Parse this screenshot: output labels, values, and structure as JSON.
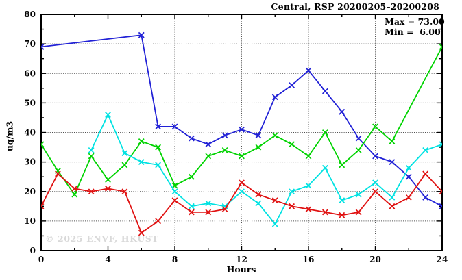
{
  "chart_data": {
    "type": "line",
    "title": "Central, RSP 20200205–20200208",
    "xlabel": "Hours",
    "ylabel": "ug/m3",
    "xlim": [
      0,
      24
    ],
    "ylim": [
      0,
      80
    ],
    "x_major_ticks": [
      0,
      4,
      8,
      12,
      16,
      20,
      24
    ],
    "x_minor_ticks": [
      2,
      6,
      10,
      14,
      18,
      22
    ],
    "y_major_ticks": [
      0,
      10,
      20,
      30,
      40,
      50,
      60,
      70,
      80
    ],
    "y_minor_ticks": [
      5,
      15,
      25,
      35,
      45,
      55,
      65,
      75
    ],
    "grid_x": [
      4,
      8,
      12,
      16,
      20
    ],
    "grid_y": [
      10,
      20,
      30,
      40,
      50,
      60,
      70
    ],
    "grid_on": true,
    "legend_position": "none",
    "annotations": {
      "max_label": "Max = 73.00",
      "min_label": "Min =  6.00"
    },
    "watermark": "© 2025 ENVF, HKUST",
    "x": [
      0,
      1,
      2,
      3,
      4,
      5,
      6,
      7,
      8,
      9,
      10,
      11,
      12,
      13,
      14,
      15,
      16,
      17,
      18,
      19,
      20,
      21,
      22,
      23,
      24
    ],
    "series": [
      {
        "name": "series-blue",
        "color": "#2121d6",
        "values": [
          69,
          null,
          null,
          null,
          null,
          null,
          73,
          42,
          42,
          38,
          36,
          39,
          41,
          39,
          52,
          56,
          61,
          54,
          47,
          38,
          32,
          30,
          25,
          18,
          15
        ]
      },
      {
        "name": "series-green",
        "color": "#00d300",
        "values": [
          36,
          27,
          19,
          32,
          24,
          29,
          37,
          35,
          22,
          25,
          32,
          34,
          32,
          35,
          39,
          36,
          32,
          40,
          29,
          34,
          42,
          37,
          null,
          null,
          69
        ]
      },
      {
        "name": "series-cyan",
        "color": "#00e2e2",
        "values": [
          null,
          null,
          null,
          34,
          46,
          33,
          30,
          29,
          20,
          15,
          16,
          15,
          20,
          16,
          9,
          20,
          22,
          28,
          17,
          19,
          23,
          18,
          28,
          34,
          36
        ]
      },
      {
        "name": "series-red",
        "color": "#e01111",
        "values": [
          15,
          26,
          21,
          20,
          21,
          20,
          6,
          10,
          17,
          13,
          13,
          14,
          23,
          19,
          17,
          15,
          14,
          13,
          12,
          13,
          20,
          15,
          18,
          26,
          20
        ]
      }
    ],
    "axis_color": "#000000",
    "grid_color": "#4d4d4d"
  }
}
